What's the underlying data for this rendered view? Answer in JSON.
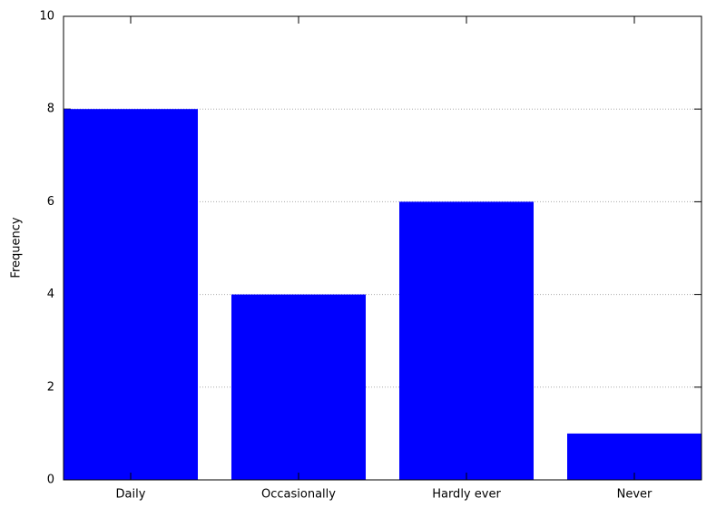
{
  "chart_data": {
    "type": "bar",
    "y_label": "Frequency",
    "categories": [
      "Daily",
      "Occasionally",
      "Hardly ever",
      "Never"
    ],
    "values": [
      8,
      4,
      6,
      1
    ],
    "color": "#0000ff",
    "ylim": [
      0,
      10
    ],
    "yticks": [
      0,
      2,
      4,
      6,
      8,
      10
    ],
    "grid": true
  }
}
